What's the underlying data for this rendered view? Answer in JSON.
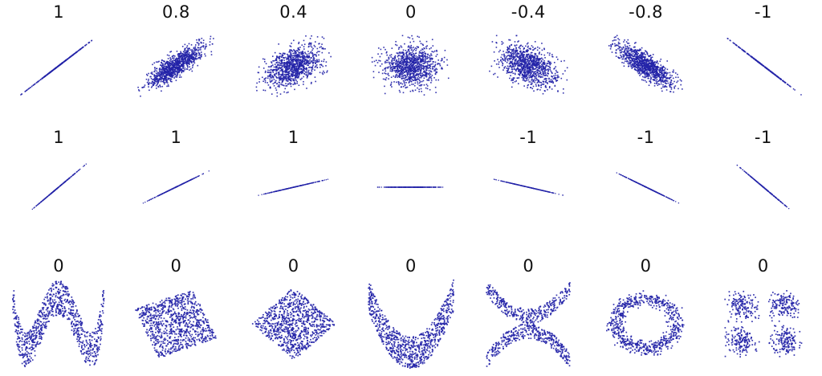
{
  "figure": {
    "background": "#ffffff",
    "point_color": "#2424a8",
    "label_color": "#111111"
  },
  "chart_data": {
    "type": "scatter",
    "title": "",
    "xlabel": "",
    "ylabel": "",
    "grid": false,
    "legend": false,
    "rows": [
      {
        "panels": [
          {
            "label": "1",
            "pattern": "bivariate",
            "r": 1,
            "n": 350
          },
          {
            "label": "0.8",
            "pattern": "bivariate",
            "r": 0.8,
            "n": 1000
          },
          {
            "label": "0.4",
            "pattern": "bivariate",
            "r": 0.4,
            "n": 1000
          },
          {
            "label": "0",
            "pattern": "bivariate",
            "r": 0,
            "n": 1000
          },
          {
            "label": "-0.4",
            "pattern": "bivariate",
            "r": -0.4,
            "n": 1000
          },
          {
            "label": "-0.8",
            "pattern": "bivariate",
            "r": -0.8,
            "n": 1000
          },
          {
            "label": "-1",
            "pattern": "bivariate",
            "r": -1,
            "n": 350
          }
        ]
      },
      {
        "panels": [
          {
            "label": "1",
            "pattern": "line",
            "angle_deg": 40,
            "n": 320
          },
          {
            "label": "1",
            "pattern": "line",
            "angle_deg": 26,
            "n": 320
          },
          {
            "label": "1",
            "pattern": "line",
            "angle_deg": 13,
            "n": 320
          },
          {
            "label": "",
            "pattern": "line",
            "angle_deg": 0,
            "n": 320
          },
          {
            "label": "-1",
            "pattern": "line",
            "angle_deg": -13,
            "n": 320
          },
          {
            "label": "-1",
            "pattern": "line",
            "angle_deg": -26,
            "n": 320
          },
          {
            "label": "-1",
            "pattern": "line",
            "angle_deg": -40,
            "n": 320
          }
        ]
      },
      {
        "panels": [
          {
            "label": "0",
            "pattern": "wave",
            "n": 850
          },
          {
            "label": "0",
            "pattern": "rotated-square",
            "n": 900
          },
          {
            "label": "0",
            "pattern": "diamond",
            "n": 900
          },
          {
            "label": "0",
            "pattern": "parabola",
            "n": 850
          },
          {
            "label": "0",
            "pattern": "x-cross",
            "n": 750
          },
          {
            "label": "0",
            "pattern": "ring",
            "n": 700
          },
          {
            "label": "0",
            "pattern": "clusters",
            "n": 640
          }
        ]
      }
    ]
  }
}
